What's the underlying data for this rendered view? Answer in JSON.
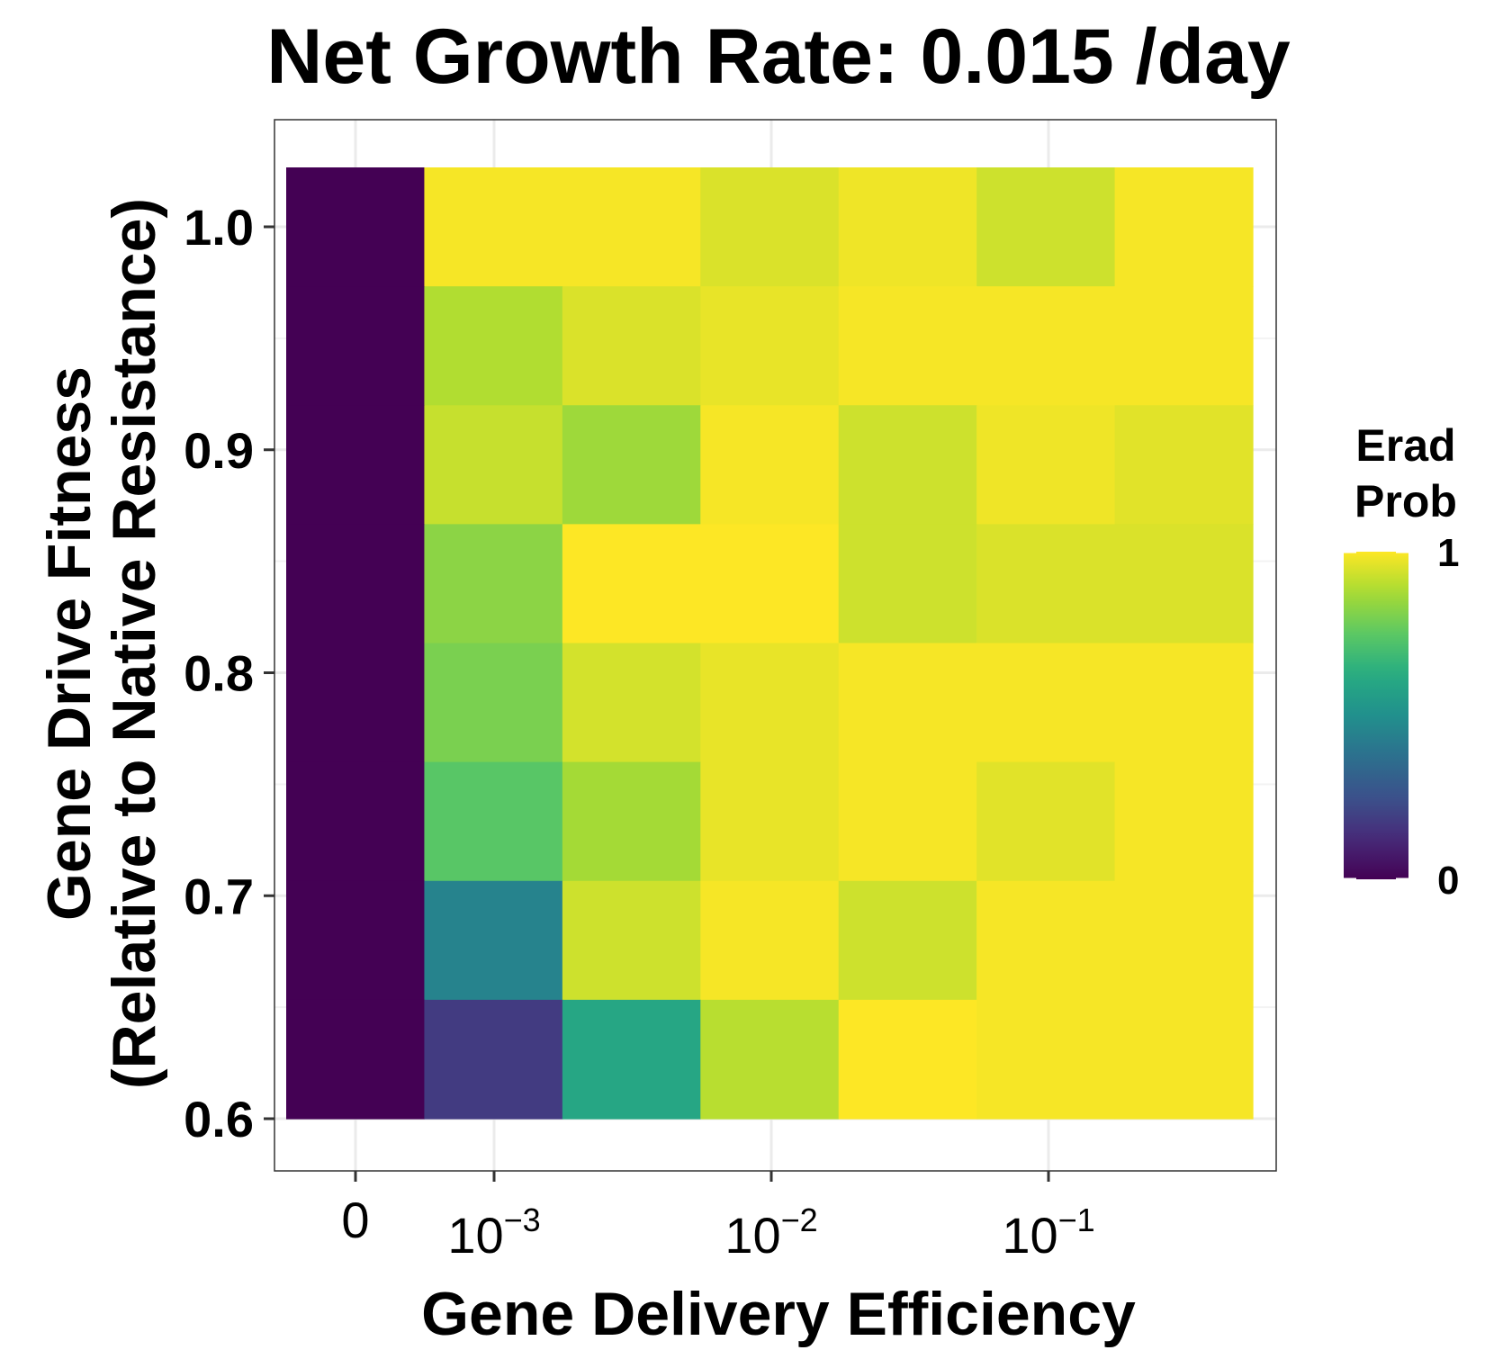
{
  "chart_data": {
    "type": "heatmap",
    "title": "Net Growth Rate: 0.015 /day",
    "xlabel": "Gene Delivery Efficiency",
    "ylabel_line1": "Gene Drive Fitness",
    "ylabel_line2": "(Relative to Native Resistance)",
    "x_ticks": [
      {
        "base": "0",
        "exp": ""
      },
      {
        "base": "10",
        "exp": "−3"
      },
      {
        "base": "10",
        "exp": "−2"
      },
      {
        "base": "10",
        "exp": "−1"
      }
    ],
    "y_ticks": [
      "0.6",
      "0.7",
      "0.8",
      "0.9",
      "1.0"
    ],
    "y_tick_values": [
      0.6,
      0.7,
      0.8,
      0.9,
      1.0
    ],
    "ylim": [
      0.6,
      1.0
    ],
    "legend_title_line1": "Erad",
    "legend_title_line2": "Prob",
    "legend_ticks": [
      "0",
      "1"
    ],
    "legend_range": [
      0,
      1
    ],
    "colormap": "viridis",
    "grid": true,
    "legend_position": "right",
    "columns": 7,
    "rows": [
      {
        "y": 1.0,
        "values": [
          0.0,
          0.99,
          0.99,
          0.95,
          0.98,
          0.93,
          0.99
        ]
      },
      {
        "y": 0.946,
        "values": [
          0.0,
          0.89,
          0.95,
          0.97,
          0.99,
          0.99,
          0.99
        ]
      },
      {
        "y": 0.893,
        "values": [
          0.0,
          0.92,
          0.86,
          0.99,
          0.93,
          0.98,
          0.96
        ]
      },
      {
        "y": 0.839,
        "values": [
          0.0,
          0.83,
          1.0,
          1.0,
          0.93,
          0.95,
          0.95
        ]
      },
      {
        "y": 0.786,
        "values": [
          0.0,
          0.8,
          0.94,
          0.97,
          0.99,
          0.99,
          0.99
        ]
      },
      {
        "y": 0.732,
        "values": [
          0.0,
          0.74,
          0.87,
          0.97,
          0.99,
          0.96,
          0.99
        ]
      },
      {
        "y": 0.679,
        "values": [
          0.0,
          0.45,
          0.93,
          0.99,
          0.93,
          0.99,
          0.99
        ]
      },
      {
        "y": 0.625,
        "values": [
          0.0,
          0.18,
          0.6,
          0.9,
          1.0,
          0.99,
          0.99
        ]
      }
    ]
  }
}
